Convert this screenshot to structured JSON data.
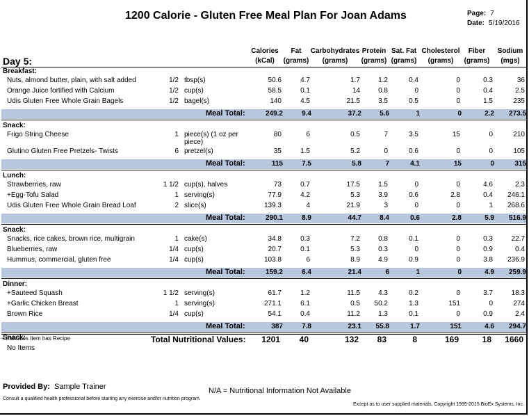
{
  "title": "1200 Calorie - Gluten Free Meal Plan For Joan Adams",
  "page_label": "Page:",
  "page_value": "7",
  "date_label": "Date:",
  "date_value": "5/19/2016",
  "day": "Day 5:",
  "headers": [
    {
      "l1": "Calories",
      "l2": "(kCal)"
    },
    {
      "l1": "Fat",
      "l2": "(grams)"
    },
    {
      "l1": "Carbohydrates",
      "l2": "(grams)"
    },
    {
      "l1": "Protein",
      "l2": "(grams)"
    },
    {
      "l1": "Sat. Fat",
      "l2": "(grams)"
    },
    {
      "l1": "Cholesterol",
      "l2": "(grams)"
    },
    {
      "l1": "Fiber",
      "l2": "(grams)"
    },
    {
      "l1": "Sodium",
      "l2": "(mgs)"
    }
  ],
  "meals": [
    {
      "name": "Breakfast:",
      "items": [
        {
          "food": "Nuts, almond butter, plain, with salt added",
          "qty": "1/2",
          "unit": "tbsp(s)",
          "v": [
            "50.6",
            "4.7",
            "1.7",
            "1.2",
            "0.4",
            "0",
            "0.3",
            "36"
          ]
        },
        {
          "food": "Orange Juice fortified with Calcium",
          "qty": "1/2",
          "unit": "cup(s)",
          "v": [
            "58.5",
            "0.1",
            "14",
            "0.8",
            "0",
            "0",
            "0.4",
            "2.5"
          ]
        },
        {
          "food": "Udis Gluten Free Whole Grain Bagels",
          "qty": "1/2",
          "unit": "bagel(s)",
          "v": [
            "140",
            "4.5",
            "21.5",
            "3.5",
            "0.5",
            "0",
            "1.5",
            "235"
          ]
        }
      ],
      "total_label": "Meal Total:",
      "total": [
        "249.2",
        "9.4",
        "37.2",
        "5.6",
        "1",
        "0",
        "2.2",
        "273.5"
      ]
    },
    {
      "name": "Snack:",
      "items": [
        {
          "food": "Frigo String Cheese",
          "qty": "1",
          "unit": "piece(s) (1 oz per",
          "unit2": "piece)",
          "v": [
            "80",
            "6",
            "0.5",
            "7",
            "3.5",
            "15",
            "0",
            "210"
          ]
        },
        {
          "food": "Glutino Gluten Free Pretzels- Twists",
          "qty": "6",
          "unit": "pretzel(s)",
          "v": [
            "35",
            "1.5",
            "5.2",
            "0",
            "0.6",
            "0",
            "0",
            "105"
          ]
        }
      ],
      "total_label": "Meal Total:",
      "total": [
        "115",
        "7.5",
        "5.8",
        "7",
        "4.1",
        "15",
        "0",
        "315"
      ]
    },
    {
      "name": "Lunch:",
      "items": [
        {
          "food": "Strawberries, raw",
          "qty": "1 1/2",
          "unit": "cup(s), halves",
          "v": [
            "73",
            "0.7",
            "17.5",
            "1.5",
            "0",
            "0",
            "4.6",
            "2.3"
          ]
        },
        {
          "food": "+Egg-Tofu Salad",
          "qty": "1",
          "unit": "serving(s)",
          "v": [
            "77.9",
            "4.2",
            "5.3",
            "3.9",
            "0.6",
            "2.8",
            "0.4",
            "246.1"
          ]
        },
        {
          "food": "Udis Gluten Free Whole Grain Bread Loaf",
          "qty": "2",
          "unit": "slice(s)",
          "v": [
            "139.3",
            "4",
            "21.9",
            "3",
            "0",
            "0",
            "1",
            "268.6"
          ]
        }
      ],
      "total_label": "Meal Total:",
      "total": [
        "290.1",
        "8.9",
        "44.7",
        "8.4",
        "0.6",
        "2.8",
        "5.9",
        "516.9"
      ]
    },
    {
      "name": "Snack:",
      "items": [
        {
          "food": "Snacks, rice cakes, brown rice, multigrain",
          "qty": "1",
          "unit": "cake(s)",
          "v": [
            "34.8",
            "0.3",
            "7.2",
            "0.8",
            "0.1",
            "0",
            "0.3",
            "22.7"
          ]
        },
        {
          "food": "Blueberries, raw",
          "qty": "1/4",
          "unit": "cup(s)",
          "v": [
            "20.7",
            "0.1",
            "5.3",
            "0.3",
            "0",
            "0",
            "0.9",
            "0.4"
          ]
        },
        {
          "food": "Hummus, commercial, gluten free",
          "qty": "1/4",
          "unit": "cup(s)",
          "v": [
            "103.8",
            "6",
            "8.9",
            "4.9",
            "0.9",
            "0",
            "3.8",
            "236.9"
          ]
        }
      ],
      "total_label": "Meal Total:",
      "total": [
        "159.2",
        "6.4",
        "21.4",
        "6",
        "1",
        "0",
        "4.9",
        "259.9"
      ]
    },
    {
      "name": "Dinner:",
      "items": [
        {
          "food": "+Sauteed Squash",
          "qty": "1 1/2",
          "unit": "serving(s)",
          "v": [
            "61.7",
            "1.2",
            "11.5",
            "4.3",
            "0.2",
            "0",
            "3.7",
            "18.3"
          ]
        },
        {
          "food": "+Garlic Chicken Breast",
          "qty": "1",
          "unit": "serving(s)",
          "v": [
            "271.1",
            "6.1",
            "0.5",
            "50.2",
            "1.3",
            "151",
            "0",
            "274"
          ]
        },
        {
          "food": "Brown Rice",
          "qty": "1/4",
          "unit": "cup(s)",
          "v": [
            "54.1",
            "0.4",
            "11.2",
            "1.3",
            "0.1",
            "0",
            "0.9",
            "2.4"
          ]
        }
      ],
      "total_label": "Meal Total:",
      "total": [
        "387",
        "7.8",
        "23.1",
        "55.8",
        "1.7",
        "151",
        "4.6",
        "294.7"
      ]
    }
  ],
  "last_snack": {
    "name": "Snack:",
    "text": "No Items"
  },
  "recipe_note": "+ Indicates Item has Recipe",
  "grand_label": "Total Nutritional Values:",
  "grand": [
    "1201",
    "40",
    "132",
    "83",
    "8",
    "169",
    "18",
    "1660"
  ],
  "provided_label": "Provided By:",
  "provided_value": "Sample Trainer",
  "na_note": "N/A = Nutritional Information Not Available",
  "consult_note": "Consult a qualified health professional before starting any exercise and/or nutrition program.",
  "copyright": "Except as to user supplied materials, Copyright 1995-2015 BioEx Systems, Inc."
}
